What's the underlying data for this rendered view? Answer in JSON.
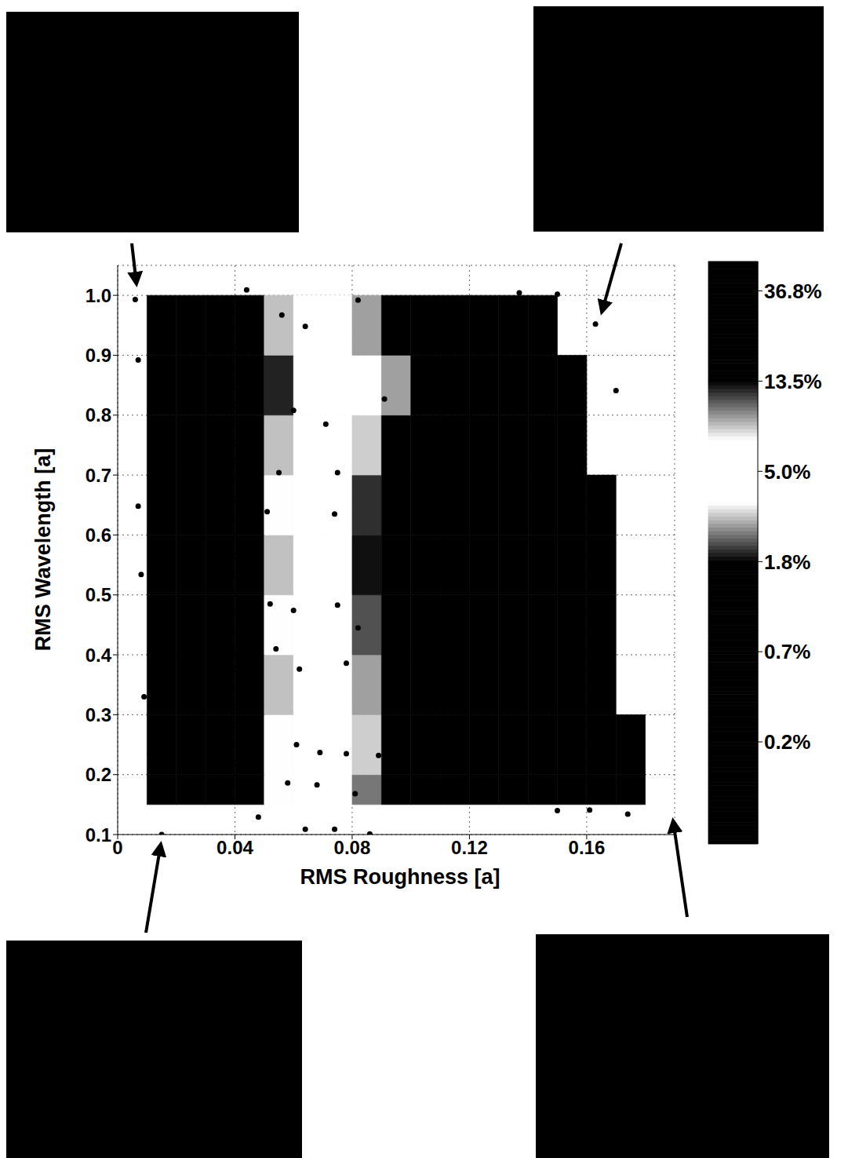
{
  "chart_data": {
    "type": "heatmap",
    "xlabel": "RMS Roughness [a]",
    "ylabel": "RMS Wavelength [a]",
    "xlim": [
      0,
      0.19
    ],
    "xticks": [
      0,
      0.04,
      0.08,
      0.12,
      0.16
    ],
    "ylim": [
      0.1,
      1.05
    ],
    "yticks": [
      0.1,
      0.2,
      0.3,
      0.4,
      0.5,
      0.6,
      0.7,
      0.8,
      0.9,
      {
        "value": 1,
        "label": "1.0"
      }
    ],
    "grid": true,
    "x_edges": [
      0.01,
      0.02,
      0.03,
      0.04,
      0.05,
      0.06,
      0.07,
      0.08,
      0.09,
      0.1,
      0.11,
      0.12,
      0.13,
      0.14,
      0.15,
      0.16,
      0.17,
      0.18
    ],
    "y_edges": [
      0.15,
      0.2,
      0.3,
      0.4,
      0.5,
      0.6,
      0.7,
      0.8,
      0.9,
      1
    ],
    "cells": [
      [
        0.1,
        0.15,
        0.3,
        1.5,
        3.5,
        5,
        6,
        10,
        22,
        35,
        45,
        50,
        50,
        50,
        50,
        50,
        50
      ],
      [
        0.1,
        0.15,
        0.3,
        1.2,
        3.5,
        5,
        6,
        8,
        18,
        35,
        45,
        50,
        50,
        50,
        50,
        50,
        50
      ],
      [
        0.1,
        0.15,
        0.25,
        0.8,
        3,
        5,
        6,
        9,
        20,
        35,
        45,
        50,
        50,
        50,
        50,
        50,
        null
      ],
      [
        0.1,
        0.15,
        0.3,
        1.2,
        3.5,
        5,
        6,
        11,
        25,
        38,
        45,
        50,
        50,
        50,
        50,
        50,
        null
      ],
      [
        0.1,
        0.15,
        0.25,
        0.9,
        3,
        5,
        7,
        13,
        28,
        40,
        48,
        50,
        50,
        50,
        50,
        50,
        null
      ],
      [
        0.1,
        0.15,
        0.3,
        1.4,
        3.5,
        5,
        7,
        12,
        25,
        38,
        45,
        50,
        50,
        50,
        50,
        50,
        null
      ],
      [
        0.1,
        0.15,
        0.25,
        0.9,
        3,
        5,
        6,
        8,
        14,
        30,
        45,
        50,
        50,
        50,
        50,
        null,
        null
      ],
      [
        0.1,
        0.15,
        0.2,
        0.6,
        2,
        4,
        5,
        6,
        9,
        20,
        40,
        50,
        50,
        50,
        50,
        null,
        null
      ],
      [
        0.1,
        0.15,
        0.25,
        0.8,
        3,
        5,
        6,
        9,
        25,
        40,
        48,
        50,
        50,
        50,
        null,
        null,
        null
      ]
    ],
    "colorbar": {
      "range": [
        0.08,
        51
      ],
      "log": true,
      "ticks": [
        {
          "value": 36.79,
          "label": "36.8%"
        },
        {
          "value": 13.53,
          "label": "13.5%"
        },
        {
          "value": 4.98,
          "label": "5.0%"
        },
        {
          "value": 1.83,
          "label": "1.8%"
        },
        {
          "value": 0.674,
          "label": "0.7%"
        },
        {
          "value": 0.248,
          "label": "0.2%"
        }
      ]
    },
    "points": {
      "type": "scatter",
      "color": "#000000",
      "marker": "circle",
      "x": [
        0.006,
        0.044,
        0.056,
        0.064,
        0.082,
        0.094,
        0.137,
        0.15,
        0.163,
        0.007,
        0.06,
        0.071,
        0.091,
        0.17,
        0.007,
        0.055,
        0.075,
        0.074,
        0.051,
        0.008,
        0.052,
        0.06,
        0.075,
        0.082,
        0.054,
        0.062,
        0.078,
        0.009,
        0.011,
        0.013,
        0.061,
        0.069,
        0.078,
        0.089,
        0.058,
        0.068,
        0.081,
        0.048,
        0.064,
        0.074,
        0.086,
        0.015,
        0.15,
        0.161,
        0.174
      ],
      "y": [
        0.993,
        1.009,
        0.967,
        0.948,
        0.992,
        0.992,
        1.004,
        1.002,
        0.952,
        0.892,
        0.808,
        0.785,
        0.827,
        0.841,
        0.648,
        0.704,
        0.704,
        0.635,
        0.639,
        0.534,
        0.485,
        0.474,
        0.483,
        0.445,
        0.41,
        0.376,
        0.386,
        0.33,
        0.234,
        0.186,
        0.25,
        0.237,
        0.235,
        0.232,
        0.186,
        0.183,
        0.168,
        0.129,
        0.109,
        0.109,
        0.101,
        0.1,
        0.14,
        0.141,
        0.134
      ]
    }
  }
}
